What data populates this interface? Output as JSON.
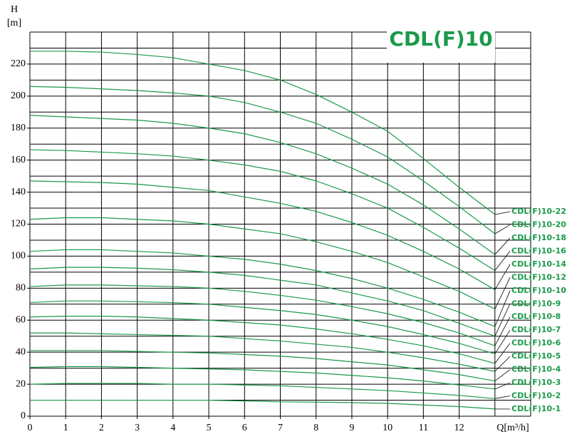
{
  "chart_data": {
    "type": "line",
    "title": "CDL(F)10",
    "y_label": "H",
    "y_unit": "[m]",
    "x_label": "Q[m³/h]",
    "x": [
      0,
      1,
      2,
      3,
      4,
      5,
      6,
      7,
      8,
      9,
      10,
      11,
      12,
      13
    ],
    "xlim": [
      0,
      14
    ],
    "xticks": [
      0,
      1,
      2,
      3,
      4,
      5,
      6,
      7,
      8,
      9,
      10,
      11,
      12
    ],
    "ylim": [
      0,
      240
    ],
    "yticks": [
      0,
      20,
      40,
      60,
      80,
      100,
      120,
      140,
      160,
      180,
      200,
      220
    ],
    "grid": true,
    "minor_grid": true,
    "series": [
      {
        "name": "CDL(F)10-22",
        "color": "#1a9a4a",
        "values": [
          228,
          228,
          227.5,
          226,
          224,
          220,
          216,
          210,
          201,
          190,
          178,
          161,
          143,
          126
        ]
      },
      {
        "name": "CDL(F)10-20",
        "color": "#1a9a4a",
        "values": [
          206,
          205.5,
          204.5,
          203.5,
          202,
          200,
          196,
          190,
          183,
          173,
          162,
          147,
          131,
          114
        ]
      },
      {
        "name": "CDL(F)10-18",
        "color": "#1a9a4a",
        "values": [
          188,
          187,
          186,
          185,
          183,
          180,
          176.5,
          171,
          164,
          155,
          145,
          132,
          117,
          101
        ]
      },
      {
        "name": "CDL(F)10-16",
        "color": "#1a9a4a",
        "values": [
          166.5,
          166,
          165,
          164,
          162.5,
          160,
          157,
          153,
          147,
          139,
          130,
          118,
          105,
          91
        ]
      },
      {
        "name": "CDL(F)10-14",
        "color": "#1a9a4a",
        "values": [
          147,
          146.5,
          146,
          145,
          143,
          141,
          137,
          133,
          128,
          121,
          113,
          103,
          92,
          79
        ]
      },
      {
        "name": "CDL(F)10-12",
        "color": "#1a9a4a",
        "values": [
          123,
          124,
          124,
          123,
          122,
          120,
          117,
          114,
          109,
          103,
          96,
          87,
          78,
          67
        ]
      },
      {
        "name": "CDL(F)10-10",
        "color": "#1a9a4a",
        "values": [
          103,
          104,
          104,
          103,
          102,
          100,
          98,
          95,
          91,
          86,
          80,
          73,
          65,
          56
        ]
      },
      {
        "name": "CDL(F)10-9",
        "color": "#1a9a4a",
        "values": [
          92,
          93,
          93,
          92.5,
          91.5,
          90,
          88,
          85,
          82,
          77,
          72,
          66,
          58,
          50
        ]
      },
      {
        "name": "CDL(F)10-8",
        "color": "#1a9a4a",
        "values": [
          81,
          82,
          82,
          81.5,
          81,
          80,
          78,
          75.5,
          72.5,
          68.5,
          64,
          58.5,
          52,
          44
        ]
      },
      {
        "name": "CDL(F)10-7",
        "color": "#1a9a4a",
        "values": [
          71,
          72,
          72,
          71.5,
          71,
          70,
          68,
          66,
          63.5,
          60,
          56,
          51,
          45.5,
          39
        ]
      },
      {
        "name": "CDL(F)10-6",
        "color": "#1a9a4a",
        "values": [
          62,
          62.5,
          62.5,
          62,
          61,
          60,
          58.5,
          57,
          54.5,
          51.5,
          48,
          44,
          39,
          33
        ]
      },
      {
        "name": "CDL(F)10-5",
        "color": "#1a9a4a",
        "values": [
          52,
          52,
          51.5,
          51,
          50.5,
          50,
          48.5,
          47,
          45,
          43,
          40,
          36.5,
          32.5,
          28
        ]
      },
      {
        "name": "CDL(F)10-4",
        "color": "#1a9a4a",
        "values": [
          41,
          41,
          41,
          40.5,
          40,
          39.5,
          38.5,
          37.5,
          36,
          34,
          32,
          29,
          26,
          22
        ]
      },
      {
        "name": "CDL(F)10-3",
        "color": "#1a9a4a",
        "values": [
          30.5,
          31,
          31,
          30.5,
          30,
          29.5,
          29,
          28,
          27,
          25.5,
          24,
          22,
          19.5,
          17
        ]
      },
      {
        "name": "CDL(F)10-2",
        "color": "#1a9a4a",
        "values": [
          20,
          20.5,
          20.5,
          20.5,
          20,
          20,
          19.5,
          19,
          18,
          17,
          16,
          14.5,
          13,
          11
        ]
      },
      {
        "name": "CDL(F)10-1",
        "color": "#1a9a4a",
        "values": [
          10,
          10,
          10,
          10,
          10,
          10,
          9.5,
          9,
          8.8,
          8.5,
          8,
          7,
          6,
          4.5
        ]
      }
    ]
  }
}
